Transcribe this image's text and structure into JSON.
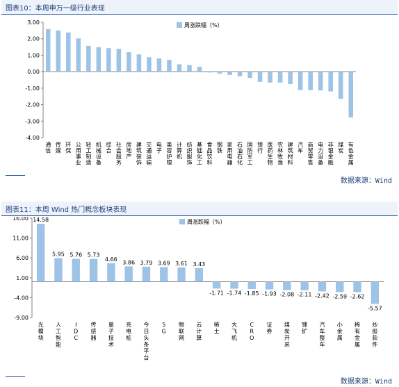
{
  "charts": [
    {
      "header": "图表10：本周申万一级行业表现",
      "source": "数据来源：Wind"
    },
    {
      "header": "图表11：本周 Wind 热门概念板块表现",
      "source": "数据来源：Wind"
    }
  ],
  "chart_data": [
    {
      "type": "bar",
      "title": "",
      "legend": [
        "周涨跌幅（%）"
      ],
      "legend_position": "top-center",
      "grid": false,
      "ylim": [
        -4.0,
        3.0
      ],
      "yticks": [
        "3.00",
        "2.00",
        "1.00",
        "0.00",
        "-1.00",
        "-2.00",
        "-3.00",
        "-4.00"
      ],
      "bar_color": "#9dc3e6",
      "data_labels": false,
      "categories": [
        "通信",
        "传媒",
        "环保",
        "公用事业",
        "轻工制造",
        "机械设备",
        "综合",
        "社会服务",
        "房地产",
        "建筑装饰",
        "交通运输",
        "电子",
        "美容护理",
        "计算机",
        "纺织服饰",
        "基础化工",
        "食品饮料",
        "钢铁",
        "家用电器",
        "石油石化",
        "国防军工",
        "银行",
        "医药生物",
        "农林牧渔",
        "建筑材料",
        "汽车",
        "商贸零售",
        "电力设备",
        "非银金融",
        "煤炭",
        "有色金属"
      ],
      "series": [
        {
          "name": "周涨跌幅（%）",
          "values": [
            2.58,
            2.5,
            2.38,
            2.02,
            1.57,
            1.48,
            1.43,
            1.38,
            1.18,
            1.05,
            0.88,
            0.8,
            0.72,
            0.45,
            0.4,
            0.3,
            -0.05,
            -0.12,
            -0.2,
            -0.28,
            -0.38,
            -0.62,
            -0.66,
            -0.66,
            -0.75,
            -1.12,
            -1.12,
            -1.14,
            -1.2,
            -1.65,
            -2.78
          ]
        }
      ]
    },
    {
      "type": "bar",
      "title": "",
      "legend": [
        "周涨跌幅（%）"
      ],
      "legend_position": "top-center",
      "grid": false,
      "ylim": [
        -9.0,
        16.0
      ],
      "yticks": [
        "16.00",
        "11.00",
        "6.00",
        "1.00",
        "-4.00",
        "-9.00"
      ],
      "bar_color": "#9dc3e6",
      "data_labels": true,
      "categories": [
        "光模块",
        "人工智能",
        "IDC",
        "传感器",
        "量子技术",
        "充电桩",
        "今日头条平台",
        "5G",
        "物联网",
        "云计算",
        "稀土",
        "大飞机",
        "CRO",
        "证券",
        "煤炭开采",
        "锂矿",
        "汽车整车",
        "小金属",
        "稀有金属",
        "炒股软件"
      ],
      "series": [
        {
          "name": "周涨跌幅（%）",
          "values": [
            14.58,
            5.95,
            5.76,
            5.73,
            4.66,
            3.86,
            3.79,
            3.69,
            3.61,
            3.43,
            -1.71,
            -1.74,
            -1.85,
            -1.93,
            -2.08,
            -2.11,
            -2.42,
            -2.59,
            -2.62,
            -5.57
          ],
          "labels": [
            "14.58",
            "5.95",
            "5.76",
            "5.73",
            "4.66",
            "3.86",
            "3.79",
            "3.69",
            "3.61",
            "3.43",
            "-1.71",
            "-1.74",
            "-1.85",
            "-1.93",
            "-2.08",
            "-2.11",
            "-2.42",
            "-2.59",
            "-2.62",
            "-5.57"
          ]
        }
      ]
    }
  ]
}
